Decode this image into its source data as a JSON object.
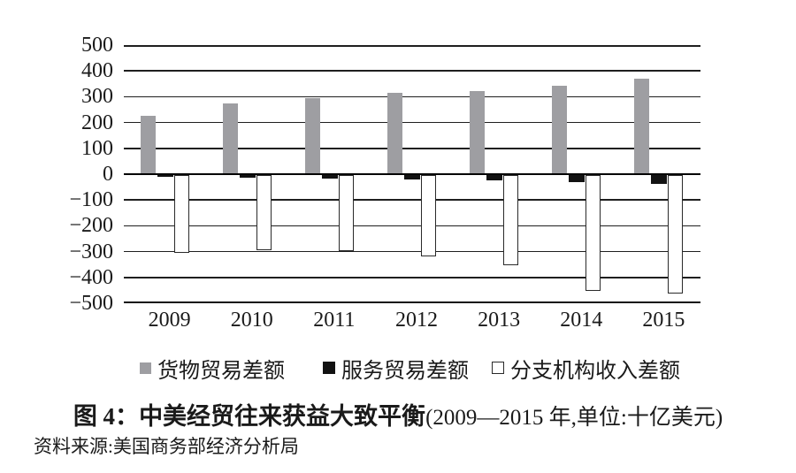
{
  "colors": {
    "goods_fill": "#9e9ea2",
    "services_fill": "#121212",
    "branch_fill": "#ffffff",
    "branch_border": "#2a2a2a",
    "grid": "#1f1f1f",
    "text": "#1a1a1a"
  },
  "chart_data": {
    "type": "bar",
    "title": "图 4：中美经贸往来获益大致平衡(2009—2015 年,单位:十亿美元)",
    "unit_note": "单位:十亿美元",
    "categories": [
      "2009",
      "2010",
      "2011",
      "2012",
      "2013",
      "2014",
      "2015"
    ],
    "series": [
      {
        "name": "货物贸易差额",
        "style": "gray",
        "values": [
          227,
          273,
          295,
          316,
          322,
          344,
          369
        ]
      },
      {
        "name": "服务贸易差额",
        "style": "black",
        "values": [
          -6,
          -11,
          -15,
          -18,
          -22,
          -28,
          -34
        ]
      },
      {
        "name": "分支机构收入差额",
        "style": "white",
        "values": [
          -300,
          -290,
          -295,
          -315,
          -350,
          -450,
          -460
        ]
      }
    ],
    "ylim": [
      -500,
      500
    ],
    "ytick_step": 100,
    "yticks": [
      {
        "label": "500",
        "value": 500
      },
      {
        "label": "400",
        "value": 400
      },
      {
        "label": "300",
        "value": 300
      },
      {
        "label": "200",
        "value": 200
      },
      {
        "label": "100",
        "value": 100
      },
      {
        "label": "0",
        "value": 0
      },
      {
        "label": "−100",
        "value": -100
      },
      {
        "label": "−200",
        "value": -200
      },
      {
        "label": "−300",
        "value": -300
      },
      {
        "label": "−400",
        "value": -400
      },
      {
        "label": "−500",
        "value": -500
      }
    ],
    "grid": true,
    "legend_position": "bottom"
  },
  "caption": {
    "figure_label": "图 4：",
    "title": "中美经贸往来获益大致平衡",
    "subtitle": "(2009—2015 年,单位:十亿美元)"
  },
  "source": {
    "text": "资料来源:美国商务部经济分析局"
  }
}
